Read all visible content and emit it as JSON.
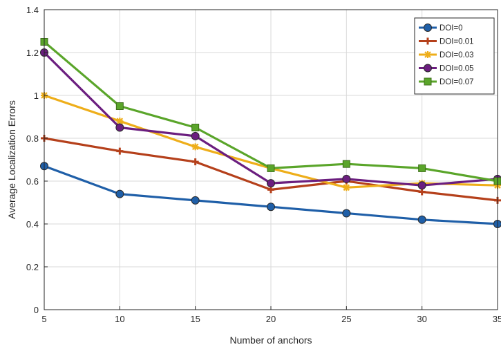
{
  "chart_data": {
    "type": "line",
    "xlabel": "Number of anchors",
    "ylabel": "Average Localization Errors",
    "x": [
      5,
      10,
      15,
      20,
      25,
      30,
      35
    ],
    "xlim": [
      5,
      35
    ],
    "ylim": [
      0,
      1.4
    ],
    "xticks": [
      "5",
      "10",
      "15",
      "20",
      "25",
      "30",
      "35"
    ],
    "yticks": [
      "0",
      "0.2",
      "0.4",
      "0.6",
      "0.8",
      "1",
      "1.2",
      "1.4"
    ],
    "grid": true,
    "legend_position": "top-right",
    "series": [
      {
        "name": "DOI=0",
        "color": "#1f5fa8",
        "marker": "circle",
        "values": [
          0.67,
          0.54,
          0.51,
          0.48,
          0.45,
          0.42,
          0.4
        ]
      },
      {
        "name": "DOI=0.01",
        "color": "#b5401b",
        "marker": "plus",
        "values": [
          0.8,
          0.74,
          0.69,
          0.56,
          0.6,
          0.55,
          0.51
        ]
      },
      {
        "name": "DOI=0.03",
        "color": "#eeae1a",
        "marker": "star",
        "values": [
          1.0,
          0.88,
          0.76,
          0.66,
          0.57,
          0.59,
          0.58
        ]
      },
      {
        "name": "DOI=0.05",
        "color": "#6b1e7f",
        "marker": "circle",
        "values": [
          1.2,
          0.85,
          0.81,
          0.59,
          0.61,
          0.58,
          0.61
        ]
      },
      {
        "name": "DOI=0.07",
        "color": "#5aa52a",
        "marker": "square",
        "values": [
          1.25,
          0.95,
          0.85,
          0.66,
          0.68,
          0.66,
          0.6
        ]
      }
    ]
  }
}
